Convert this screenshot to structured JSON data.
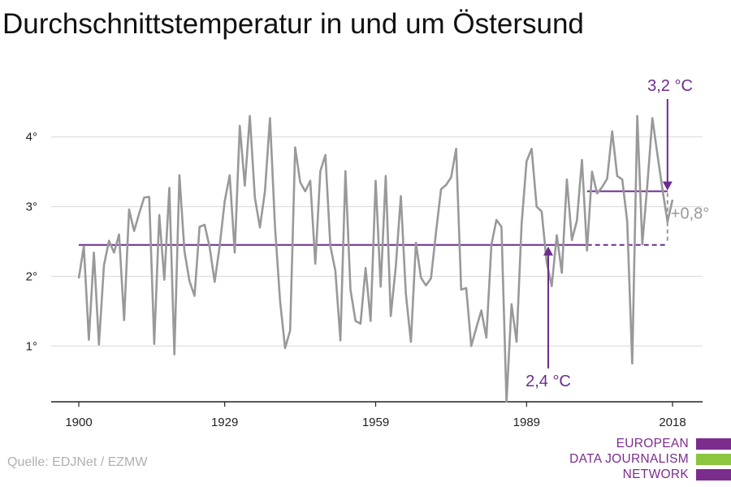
{
  "title": "Durchschnittstemperatur in und um Östersund",
  "source": "Quelle: EDJNet / EZMW",
  "logo": {
    "lines": [
      "EUROPEAN",
      "DATA JOURNALISM",
      "NETWORK"
    ],
    "colors": [
      "#7b2d8e",
      "#8cc63f",
      "#7b2d8e"
    ]
  },
  "colors": {
    "series": "#999999",
    "accent": "#6b2c8e",
    "grid": "#d9d9d9",
    "axis": "#222222",
    "diff": "#999999"
  },
  "chart_data": {
    "type": "line",
    "title": "Durchschnittstemperatur in und um Östersund",
    "xlabel": "",
    "ylabel": "",
    "xlim": [
      1900,
      2018
    ],
    "ylim": [
      0.2,
      4.8
    ],
    "x_ticks": [
      1900,
      1929,
      1959,
      1989,
      2018
    ],
    "y_ticks": [
      1,
      2,
      3,
      4
    ],
    "y_tick_labels": [
      "1°",
      "2°",
      "3°",
      "4°"
    ],
    "grid": true,
    "series": [
      {
        "x": [
          1900,
          1901,
          1902,
          1903,
          1904,
          1905,
          1906,
          1907,
          1908,
          1909,
          1910,
          1911,
          1912,
          1913,
          1914,
          1915,
          1916,
          1917,
          1918,
          1919,
          1920,
          1921,
          1922,
          1923,
          1924,
          1925,
          1926,
          1927,
          1928,
          1929,
          1930,
          1931,
          1932,
          1933,
          1934,
          1935,
          1936,
          1937,
          1938,
          1939,
          1940,
          1941,
          1942,
          1943,
          1944,
          1945,
          1946,
          1947,
          1948,
          1949,
          1950,
          1951,
          1952,
          1953,
          1954,
          1955,
          1956,
          1957,
          1958,
          1959,
          1960,
          1961,
          1962,
          1963,
          1964,
          1965,
          1966,
          1967,
          1968,
          1969,
          1970,
          1971,
          1972,
          1973,
          1974,
          1975,
          1976,
          1977,
          1978,
          1979,
          1980,
          1981,
          1982,
          1983,
          1984,
          1985,
          1986,
          1987,
          1988,
          1989,
          1990,
          1991,
          1992,
          1993,
          1994,
          1995,
          1996,
          1997,
          1998,
          1999,
          2000,
          2001,
          2002,
          2003,
          2004,
          2005,
          2006,
          2007,
          2008,
          2009,
          2010,
          2011,
          2012,
          2013,
          2014,
          2015,
          2016,
          2017,
          2018
        ],
        "y": [
          1.97,
          2.43,
          1.09,
          2.34,
          1.02,
          2.16,
          2.51,
          2.34,
          2.6,
          1.37,
          2.96,
          2.65,
          2.9,
          3.13,
          3.14,
          1.03,
          2.88,
          1.95,
          3.27,
          0.88,
          3.45,
          2.36,
          1.93,
          1.72,
          2.71,
          2.74,
          2.42,
          1.92,
          2.44,
          3.08,
          3.45,
          2.34,
          4.16,
          3.3,
          4.3,
          3.13,
          2.7,
          3.22,
          4.27,
          2.71,
          1.65,
          0.97,
          1.22,
          3.85,
          3.35,
          3.22,
          3.37,
          2.18,
          3.51,
          3.74,
          2.44,
          2.08,
          1.08,
          3.51,
          1.81,
          1.36,
          1.32,
          2.12,
          1.36,
          3.37,
          1.85,
          3.44,
          1.43,
          2.14,
          3.15,
          1.75,
          1.06,
          2.48,
          1.98,
          1.87,
          1.97,
          2.63,
          3.25,
          3.31,
          3.42,
          3.83,
          1.81,
          1.83,
          1.0,
          1.26,
          1.51,
          1.12,
          2.45,
          2.81,
          2.71,
          0.2,
          1.6,
          1.06,
          2.75,
          3.65,
          3.83,
          3.0,
          2.93,
          2.2,
          1.86,
          2.59,
          2.05,
          3.39,
          2.52,
          2.8,
          3.67,
          2.37,
          3.5,
          3.19,
          3.28,
          3.4,
          4.08,
          3.44,
          3.39,
          2.79,
          0.75,
          4.3,
          2.46,
          3.31,
          4.27,
          3.75,
          3.25,
          2.78,
          3.1
        ]
      }
    ],
    "annotations": [
      {
        "label": "3,2 °C",
        "value": 3.22,
        "from_year": 2001,
        "to_year": 2017
      },
      {
        "label": "2,4 °C",
        "value": 2.45,
        "from_year": 1900,
        "to_year": 2017
      },
      {
        "label": "+0,8°",
        "kind": "difference"
      }
    ]
  }
}
